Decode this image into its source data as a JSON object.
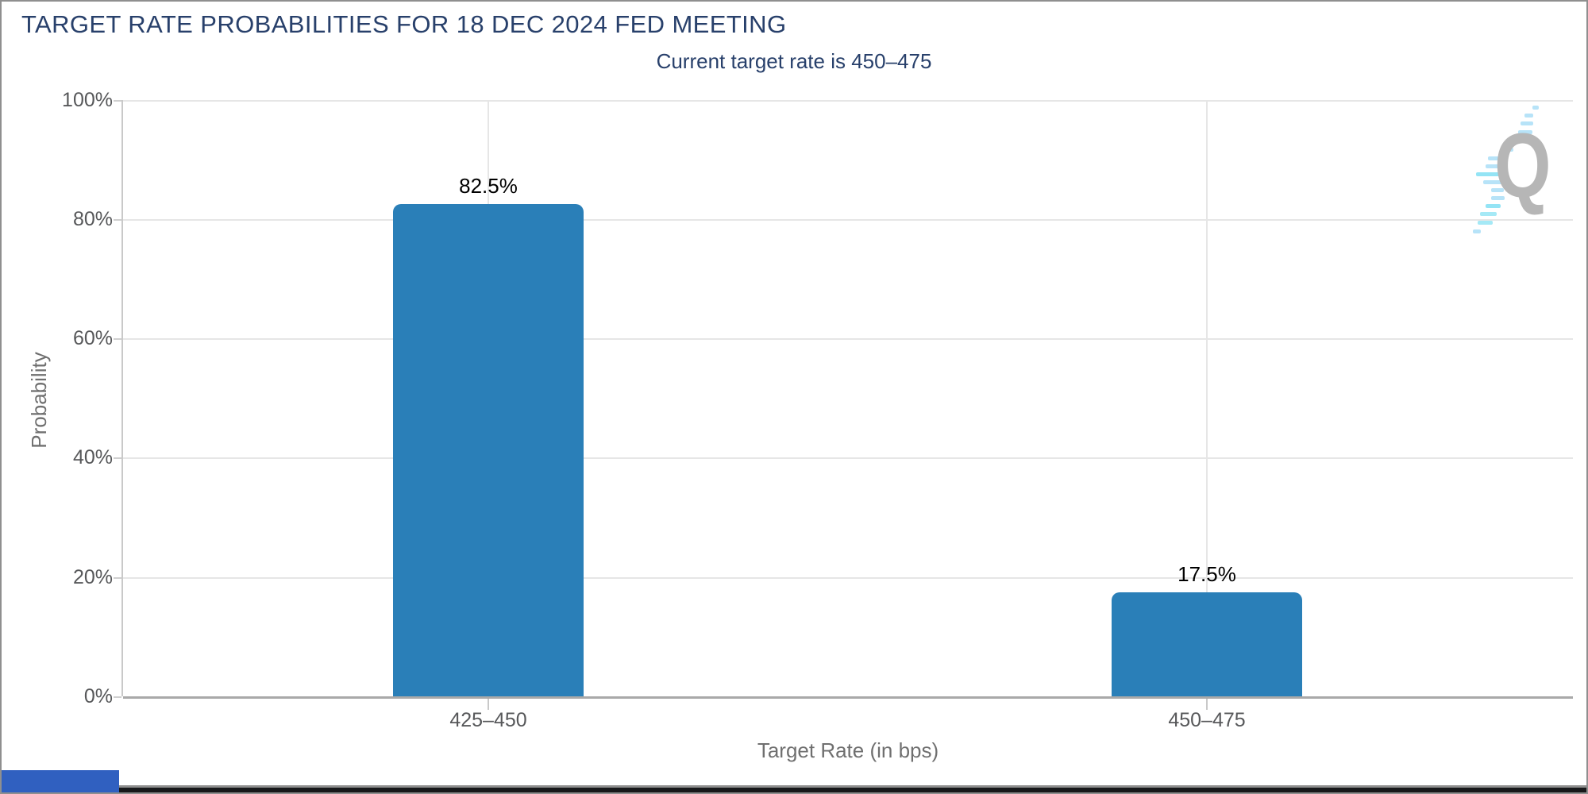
{
  "window": {
    "border_color": "#8f8f8f",
    "bottom_bar_color": "#17181a",
    "corner_accent_color": "#3060c0"
  },
  "chart_data": {
    "type": "bar",
    "title": "TARGET RATE PROBABILITIES FOR 18 DEC 2024 FED MEETING",
    "subtitle": "Current target rate is 450–475",
    "categories": [
      "425–450",
      "450–475"
    ],
    "values": [
      82.5,
      17.5
    ],
    "value_labels": [
      "82.5%",
      "17.5%"
    ],
    "xlabel": "Target Rate (in bps)",
    "ylabel": "Probability",
    "ylim": [
      0,
      100
    ],
    "yticks": [
      "100%",
      "80%",
      "60%",
      "40%",
      "20%",
      "0%"
    ],
    "grid": true,
    "legend": "none",
    "bar_color": "#2a7fb8",
    "title_color": "#28406b",
    "label_color": "#57585a",
    "watermark_letter": "Q"
  }
}
